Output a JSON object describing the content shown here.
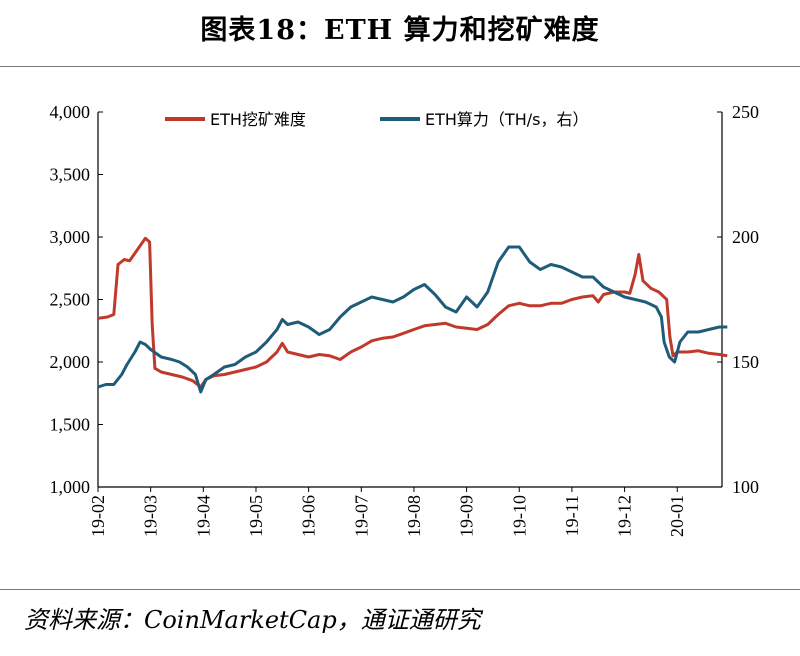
{
  "figure": {
    "title": "图表18：ETH 算力和挖矿难度",
    "source": "资料来源：CoinMarketCap，通证通研究"
  },
  "chart_data": {
    "type": "line",
    "x_tick_labels": [
      "19-02",
      "19-03",
      "19-04",
      "19-05",
      "19-06",
      "19-07",
      "19-08",
      "19-09",
      "19-10",
      "19-11",
      "19-12",
      "20-01"
    ],
    "x_range": [
      "19-02",
      "20-01"
    ],
    "y_left": {
      "min": 1000,
      "max": 4000,
      "ticks": [
        "1,000",
        "1,500",
        "2,000",
        "2,500",
        "3,000",
        "3,500",
        "4,000"
      ]
    },
    "y_right": {
      "min": 100,
      "max": 250,
      "ticks": [
        "100",
        "150",
        "200",
        "250"
      ]
    },
    "grid": false,
    "legend_position": "top",
    "series": [
      {
        "name": "ETH挖矿难度",
        "axis": "left",
        "color": "#c0392b",
        "points": [
          [
            0.0,
            2350
          ],
          [
            0.18,
            2360
          ],
          [
            0.3,
            2380
          ],
          [
            0.38,
            2780
          ],
          [
            0.5,
            2820
          ],
          [
            0.6,
            2810
          ],
          [
            0.7,
            2870
          ],
          [
            0.8,
            2930
          ],
          [
            0.9,
            2990
          ],
          [
            0.98,
            2960
          ],
          [
            1.03,
            2300
          ],
          [
            1.08,
            1950
          ],
          [
            1.2,
            1920
          ],
          [
            1.4,
            1900
          ],
          [
            1.6,
            1880
          ],
          [
            1.8,
            1850
          ],
          [
            1.95,
            1800
          ],
          [
            2.05,
            1860
          ],
          [
            2.2,
            1890
          ],
          [
            2.4,
            1900
          ],
          [
            2.6,
            1920
          ],
          [
            2.8,
            1940
          ],
          [
            3.0,
            1960
          ],
          [
            3.2,
            2000
          ],
          [
            3.4,
            2080
          ],
          [
            3.5,
            2150
          ],
          [
            3.6,
            2080
          ],
          [
            3.8,
            2060
          ],
          [
            4.0,
            2040
          ],
          [
            4.2,
            2060
          ],
          [
            4.4,
            2050
          ],
          [
            4.6,
            2020
          ],
          [
            4.8,
            2080
          ],
          [
            5.0,
            2120
          ],
          [
            5.2,
            2170
          ],
          [
            5.4,
            2190
          ],
          [
            5.6,
            2200
          ],
          [
            5.8,
            2230
          ],
          [
            6.0,
            2260
          ],
          [
            6.2,
            2290
          ],
          [
            6.4,
            2300
          ],
          [
            6.6,
            2310
          ],
          [
            6.8,
            2280
          ],
          [
            7.0,
            2270
          ],
          [
            7.2,
            2260
          ],
          [
            7.4,
            2300
          ],
          [
            7.6,
            2380
          ],
          [
            7.8,
            2450
          ],
          [
            8.0,
            2470
          ],
          [
            8.2,
            2450
          ],
          [
            8.4,
            2450
          ],
          [
            8.6,
            2470
          ],
          [
            8.8,
            2470
          ],
          [
            9.0,
            2500
          ],
          [
            9.2,
            2520
          ],
          [
            9.4,
            2530
          ],
          [
            9.5,
            2480
          ],
          [
            9.6,
            2540
          ],
          [
            9.8,
            2560
          ],
          [
            10.0,
            2560
          ],
          [
            10.1,
            2550
          ],
          [
            10.2,
            2700
          ],
          [
            10.27,
            2860
          ],
          [
            10.35,
            2650
          ],
          [
            10.5,
            2590
          ],
          [
            10.65,
            2560
          ],
          [
            10.8,
            2500
          ],
          [
            10.86,
            2200
          ],
          [
            10.92,
            2050
          ],
          [
            11.0,
            2080
          ],
          [
            11.2,
            2080
          ],
          [
            11.4,
            2090
          ],
          [
            11.6,
            2070
          ],
          [
            11.8,
            2060
          ],
          [
            11.95,
            2050
          ]
        ]
      },
      {
        "name": "ETH算力（TH/s，右）",
        "axis": "right",
        "color": "#1f5c7a",
        "points": [
          [
            0.0,
            140
          ],
          [
            0.15,
            141
          ],
          [
            0.3,
            141
          ],
          [
            0.45,
            145
          ],
          [
            0.55,
            149
          ],
          [
            0.7,
            154
          ],
          [
            0.8,
            158
          ],
          [
            0.9,
            157
          ],
          [
            1.0,
            155
          ],
          [
            1.2,
            152
          ],
          [
            1.4,
            151
          ],
          [
            1.55,
            150
          ],
          [
            1.7,
            148
          ],
          [
            1.85,
            145
          ],
          [
            1.95,
            138
          ],
          [
            2.05,
            143
          ],
          [
            2.2,
            145
          ],
          [
            2.4,
            148
          ],
          [
            2.6,
            149
          ],
          [
            2.8,
            152
          ],
          [
            3.0,
            154
          ],
          [
            3.2,
            158
          ],
          [
            3.4,
            163
          ],
          [
            3.5,
            167
          ],
          [
            3.6,
            165
          ],
          [
            3.8,
            166
          ],
          [
            4.0,
            164
          ],
          [
            4.2,
            161
          ],
          [
            4.4,
            163
          ],
          [
            4.6,
            168
          ],
          [
            4.8,
            172
          ],
          [
            5.0,
            174
          ],
          [
            5.2,
            176
          ],
          [
            5.4,
            175
          ],
          [
            5.6,
            174
          ],
          [
            5.8,
            176
          ],
          [
            6.0,
            179
          ],
          [
            6.2,
            181
          ],
          [
            6.4,
            177
          ],
          [
            6.6,
            172
          ],
          [
            6.8,
            170
          ],
          [
            7.0,
            176
          ],
          [
            7.2,
            172
          ],
          [
            7.4,
            178
          ],
          [
            7.6,
            190
          ],
          [
            7.8,
            196
          ],
          [
            8.0,
            196
          ],
          [
            8.2,
            190
          ],
          [
            8.4,
            187
          ],
          [
            8.6,
            189
          ],
          [
            8.8,
            188
          ],
          [
            9.0,
            186
          ],
          [
            9.2,
            184
          ],
          [
            9.4,
            184
          ],
          [
            9.6,
            180
          ],
          [
            9.8,
            178
          ],
          [
            10.0,
            176
          ],
          [
            10.2,
            175
          ],
          [
            10.4,
            174
          ],
          [
            10.6,
            172
          ],
          [
            10.7,
            168
          ],
          [
            10.75,
            158
          ],
          [
            10.85,
            152
          ],
          [
            10.95,
            150
          ],
          [
            11.05,
            158
          ],
          [
            11.2,
            162
          ],
          [
            11.4,
            162
          ],
          [
            11.6,
            163
          ],
          [
            11.8,
            164
          ],
          [
            11.95,
            164
          ]
        ]
      }
    ]
  }
}
